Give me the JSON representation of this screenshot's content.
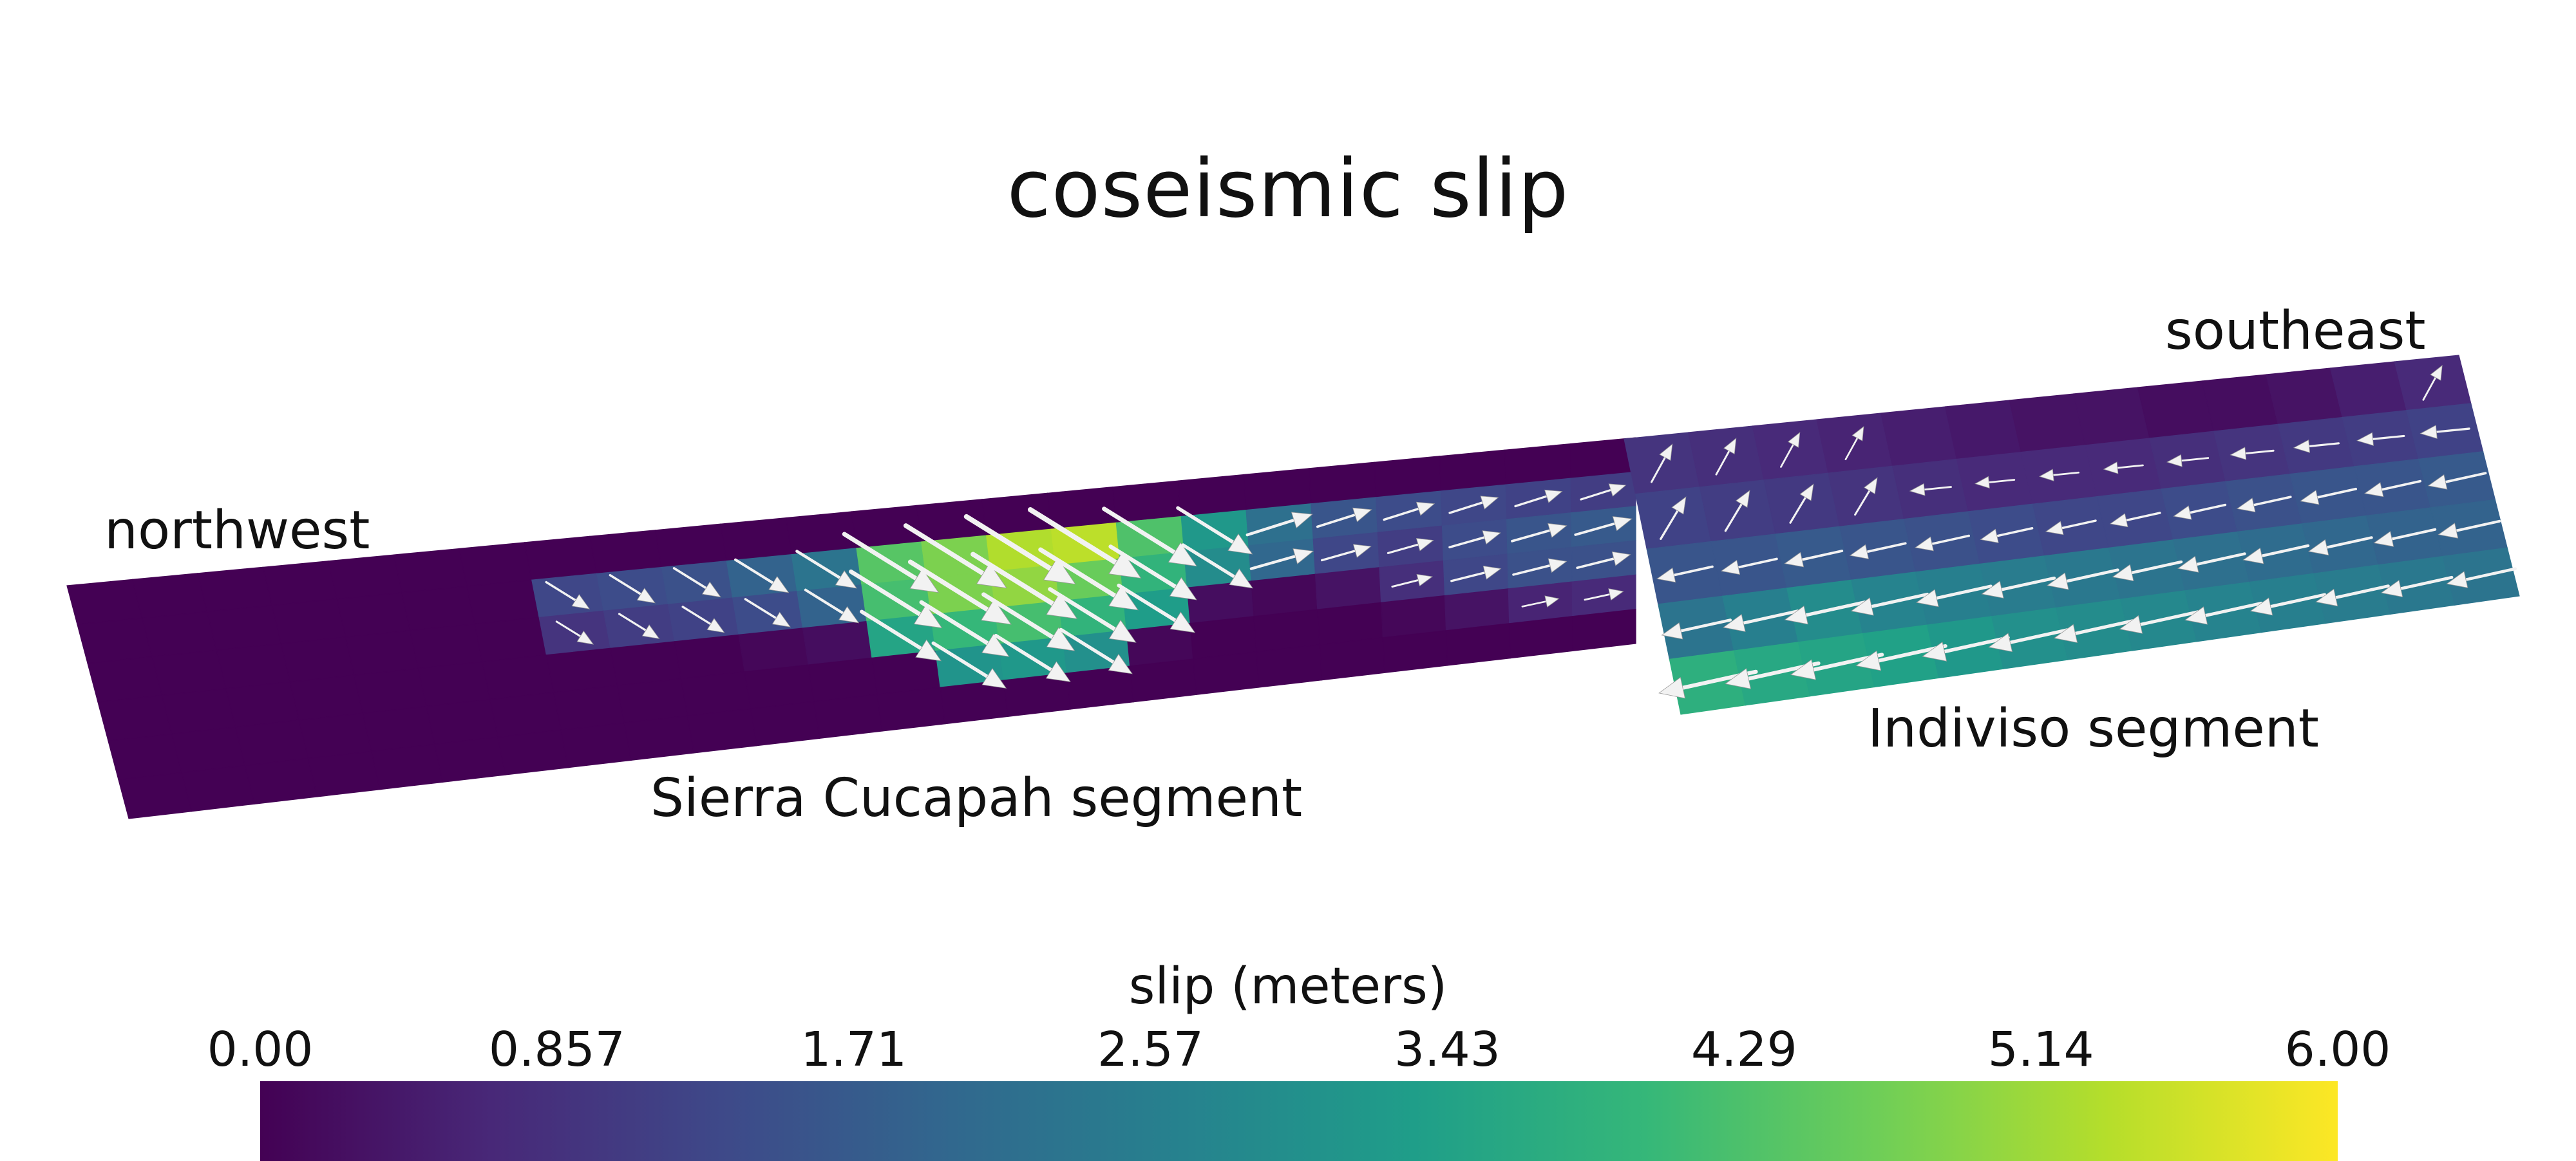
{
  "title": "coseismic slip",
  "labels": {
    "northwest": "northwest",
    "southeast": "southeast",
    "sierra_cucapah": "Sierra Cucapah segment",
    "indiviso": "Indiviso segment"
  },
  "colorbar": {
    "title": "slip (meters)",
    "colormap": "viridis",
    "range": [
      0,
      6
    ],
    "ticks": [
      "0.00",
      "0.857",
      "1.71",
      "2.57",
      "3.43",
      "4.29",
      "5.14",
      "6.00"
    ]
  },
  "colors": {
    "viridis": [
      "#440154",
      "#482878",
      "#3e4989",
      "#31688e",
      "#26828e",
      "#1f9e89",
      "#35b779",
      "#6ece58",
      "#b5de2b",
      "#fde725"
    ],
    "arrow": "#f2f2f2",
    "background": "#ffffff"
  },
  "slip_model": {
    "sierra_cucapah": {
      "slip_m": [
        [
          0.0,
          0.0,
          0.0,
          0.0,
          0.0,
          0.0,
          0.0,
          0.0,
          0.0,
          0.0,
          0.0,
          0.0,
          0.0,
          0.0,
          0.0,
          0.0,
          0.0,
          0.0,
          0.0,
          0.0,
          0.0,
          0.0,
          0.0,
          0.0
        ],
        [
          0.0,
          0.0,
          0.0,
          0.0,
          0.0,
          0.0,
          0.0,
          1.3,
          1.4,
          1.5,
          1.9,
          2.3,
          4.4,
          4.8,
          5.3,
          5.4,
          4.3,
          3.2,
          2.2,
          1.6,
          1.4,
          1.3,
          1.2,
          1.1
        ],
        [
          0.0,
          0.0,
          0.0,
          0.0,
          0.0,
          0.0,
          0.0,
          0.9,
          1.1,
          1.2,
          1.4,
          1.9,
          4.2,
          4.8,
          5.0,
          4.6,
          3.9,
          2.9,
          2.0,
          1.3,
          1.1,
          1.4,
          1.6,
          1.7
        ],
        [
          0.0,
          0.0,
          0.0,
          0.0,
          0.0,
          0.0,
          0.0,
          0.0,
          0.0,
          0.0,
          0.1,
          0.2,
          3.5,
          4.0,
          4.2,
          3.9,
          3.3,
          0.2,
          0.1,
          0.3,
          0.8,
          1.3,
          1.5,
          1.5
        ],
        [
          0.0,
          0.0,
          0.0,
          0.0,
          0.0,
          0.0,
          0.0,
          0.0,
          0.0,
          0.0,
          0.0,
          0.0,
          0.0,
          3.1,
          3.2,
          3.0,
          0.1,
          0.0,
          0.0,
          0.0,
          0.1,
          0.3,
          0.6,
          0.7
        ],
        [
          0.0,
          0.0,
          0.0,
          0.0,
          0.0,
          0.0,
          0.0,
          0.0,
          0.0,
          0.0,
          0.0,
          0.0,
          0.0,
          0.0,
          0.0,
          0.0,
          0.0,
          0.0,
          0.0,
          0.0,
          0.0,
          0.0,
          0.0,
          0.0
        ]
      ]
    },
    "indiviso": {
      "slip_m": [
        [
          0.9,
          0.8,
          0.7,
          0.6,
          0.5,
          0.4,
          0.3,
          0.3,
          0.2,
          0.2,
          0.3,
          0.5,
          0.7
        ],
        [
          1.2,
          1.1,
          1.0,
          0.9,
          0.8,
          0.7,
          0.7,
          0.7,
          0.8,
          0.9,
          1.0,
          1.1,
          1.2
        ],
        [
          1.6,
          1.6,
          1.7,
          1.6,
          1.5,
          1.4,
          1.3,
          1.3,
          1.4,
          1.5,
          1.6,
          1.6,
          1.7
        ],
        [
          2.3,
          2.6,
          2.9,
          2.7,
          2.6,
          2.5,
          2.4,
          2.3,
          2.2,
          2.1,
          2.0,
          1.9,
          1.9
        ],
        [
          3.8,
          3.6,
          3.5,
          3.4,
          3.2,
          3.0,
          2.9,
          2.8,
          2.7,
          2.6,
          2.5,
          2.4,
          2.3
        ]
      ]
    }
  }
}
